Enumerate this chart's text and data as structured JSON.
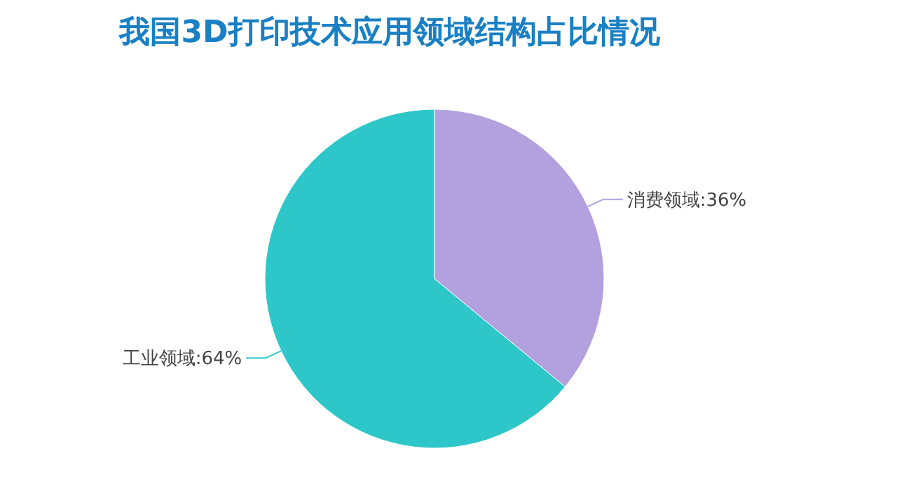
{
  "chart_data": {
    "type": "pie",
    "title": "我国3D打印技术应用领域结构占比情况",
    "categories": [
      "消费领域",
      "工业领域"
    ],
    "values": [
      36,
      64
    ],
    "colors": [
      "#b3a0de",
      "#2ec7c9"
    ],
    "value_labels": [
      ":36%",
      ":64%"
    ]
  }
}
